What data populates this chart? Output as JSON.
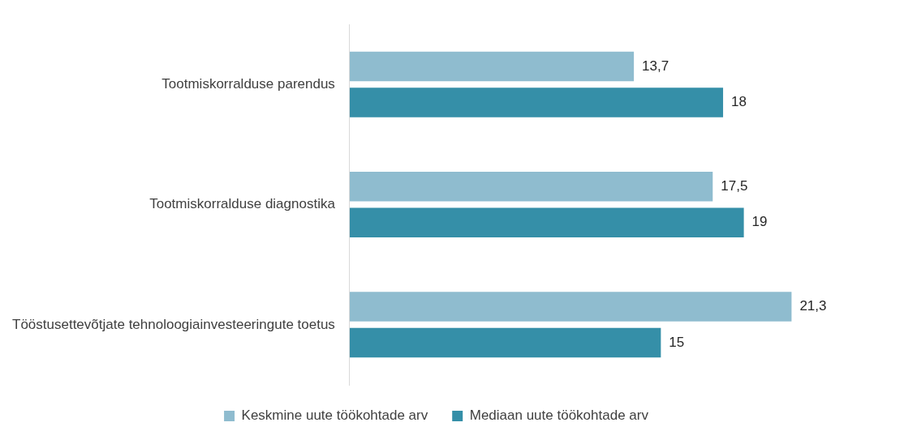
{
  "chart_data": {
    "type": "bar",
    "orientation": "horizontal",
    "categories": [
      "Tootmiskorralduse parendus",
      "Tootmiskorralduse diagnostika",
      "Tööstusettevõtjate tehnoloogiainvesteeringute toetus"
    ],
    "series": [
      {
        "name": "Keskmine uute töökohtade arv",
        "color": "#8fbccf",
        "values": [
          13.7,
          17.5,
          21.3
        ],
        "value_labels": [
          "13,7",
          "17,5",
          "21,3"
        ]
      },
      {
        "name": "Mediaan uute töökohtade arv",
        "color": "#358fa8",
        "values": [
          18,
          19,
          15
        ],
        "value_labels": [
          "18",
          "19",
          "15"
        ]
      }
    ],
    "legend": "bottom"
  }
}
